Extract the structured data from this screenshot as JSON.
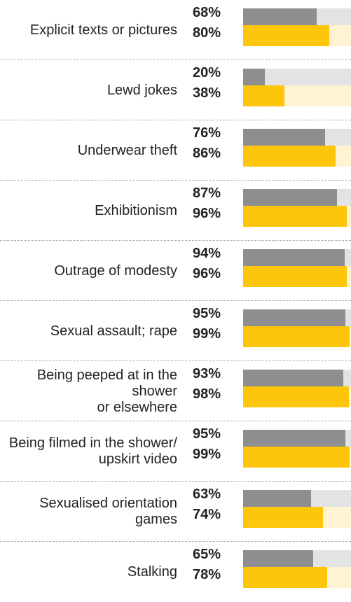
{
  "chart_data": {
    "type": "bar",
    "orientation": "horizontal",
    "categories": [
      "Explicit texts or pictures",
      "Lewd jokes",
      "Underwear theft",
      "Exhibitionism",
      "Outrage of modesty",
      "Sexual assault; rape",
      "Being peeped at in the shower\nor elsewhere",
      "Being filmed in the shower/\nupskirt video",
      "Sexualised orientation games",
      "Stalking"
    ],
    "series": [
      {
        "values": [
          68,
          20,
          76,
          87,
          94,
          95,
          93,
          95,
          63,
          65
        ]
      },
      {
        "values": [
          80,
          38,
          86,
          96,
          96,
          99,
          98,
          99,
          74,
          78
        ]
      }
    ],
    "value_labels": [
      [
        "68%",
        "20%",
        "76%",
        "87%",
        "94%",
        "95%",
        "93%",
        "95%",
        "63%",
        "65%"
      ],
      [
        "80%",
        "38%",
        "86%",
        "96%",
        "96%",
        "99%",
        "98%",
        "99%",
        "74%",
        "78%"
      ]
    ],
    "xlim": [
      0,
      100
    ],
    "colors": {
      "series1_fill": "#8e8e90",
      "series1_track": "#e3e3e5",
      "series2_fill": "#fdc60a",
      "series2_track": "#fff3d2"
    }
  }
}
